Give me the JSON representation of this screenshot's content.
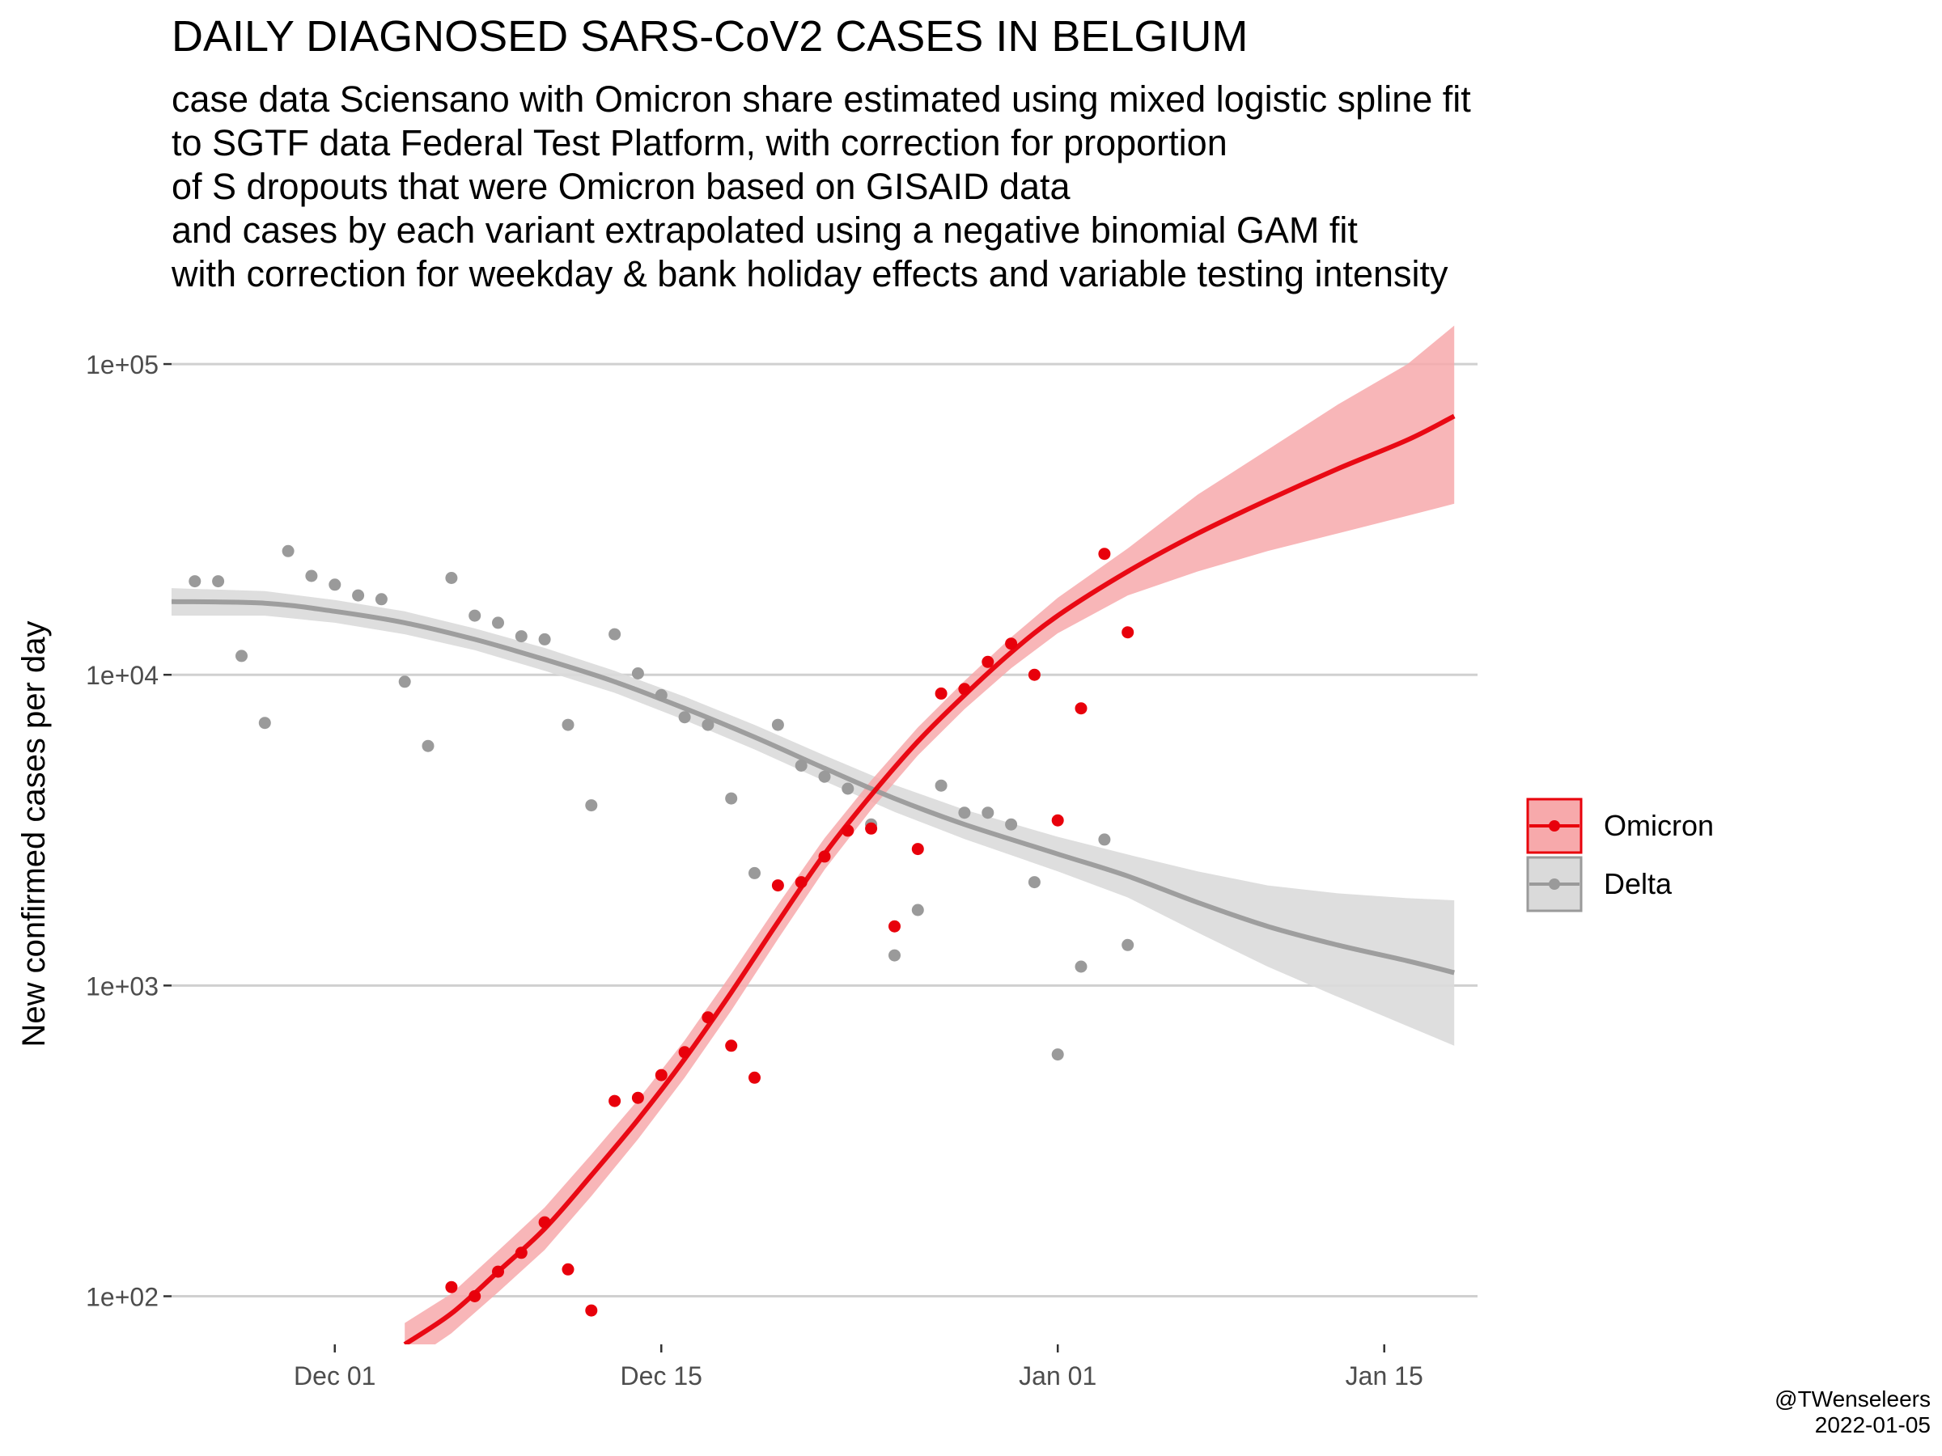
{
  "title": "DAILY DIAGNOSED SARS-CoV2 CASES IN BELGIUM",
  "subtitle_lines": [
    "case data Sciensano with Omicron share estimated using mixed logistic spline fit",
    "to SGTF data Federal Test Platform, with correction for proportion",
    "of S dropouts that were Omicron based on GISAID data",
    "and cases by each variant extrapolated using a negative binomial GAM fit",
    "with correction for weekday & bank holiday effects and variable testing intensity"
  ],
  "credit": {
    "handle": "@TWenseleers",
    "date": "2022-01-05"
  },
  "colors": {
    "omicron": "#e8000b",
    "omicron_band": "#f7a9ab",
    "delta": "#9a9a9a",
    "delta_band": "#dadada",
    "grid": "#d0d0d0"
  },
  "chart_data": {
    "type": "scatter",
    "xlabel": "",
    "ylabel": "New confirmed cases per day",
    "yscale": "log10",
    "xlim": [
      "2021-11-24",
      "2022-01-19"
    ],
    "ylim": [
      70,
      135000
    ],
    "x_ticks": [
      {
        "date": "2021-12-01",
        "label": "Dec 01"
      },
      {
        "date": "2021-12-15",
        "label": "Dec 15"
      },
      {
        "date": "2022-01-01",
        "label": "Jan 01"
      },
      {
        "date": "2022-01-15",
        "label": "Jan 15"
      }
    ],
    "y_ticks": [
      {
        "value": 100,
        "label": "1e+02"
      },
      {
        "value": 1000,
        "label": "1e+03"
      },
      {
        "value": 10000,
        "label": "1e+04"
      },
      {
        "value": 100000,
        "label": "1e+05"
      }
    ],
    "grid": true,
    "legend_position": "right",
    "series": [
      {
        "name": "Omicron",
        "color": "#e8000b",
        "points": [
          [
            "2021-12-06",
            107
          ],
          [
            "2021-12-07",
            100
          ],
          [
            "2021-12-08",
            120
          ],
          [
            "2021-12-09",
            138
          ],
          [
            "2021-12-10",
            173
          ],
          [
            "2021-12-11",
            122
          ],
          [
            "2021-12-12",
            90
          ],
          [
            "2021-12-13",
            425
          ],
          [
            "2021-12-14",
            435
          ],
          [
            "2021-12-15",
            515
          ],
          [
            "2021-12-16",
            610
          ],
          [
            "2021-12-17",
            790
          ],
          [
            "2021-12-18",
            640
          ],
          [
            "2021-12-19",
            505
          ],
          [
            "2021-12-20",
            2100
          ],
          [
            "2021-12-21",
            2150
          ],
          [
            "2021-12-22",
            2600
          ],
          [
            "2021-12-23",
            3150
          ],
          [
            "2021-12-24",
            3200
          ],
          [
            "2021-12-25",
            1550
          ],
          [
            "2021-12-26",
            2750
          ],
          [
            "2021-12-27",
            8700
          ],
          [
            "2021-12-28",
            9000
          ],
          [
            "2021-12-29",
            11000
          ],
          [
            "2021-12-30",
            12600
          ],
          [
            "2021-12-31",
            10000
          ],
          [
            "2022-01-01",
            3400
          ],
          [
            "2022-01-02",
            7800
          ],
          [
            "2022-01-03",
            24500
          ],
          [
            "2022-01-04",
            13700
          ]
        ],
        "fit": [
          [
            "2021-12-04",
            70
          ],
          [
            "2021-12-06",
            88
          ],
          [
            "2021-12-08",
            120
          ],
          [
            "2021-12-10",
            165
          ],
          [
            "2021-12-12",
            245
          ],
          [
            "2021-12-14",
            370
          ],
          [
            "2021-12-16",
            580
          ],
          [
            "2021-12-18",
            950
          ],
          [
            "2021-12-20",
            1600
          ],
          [
            "2021-12-22",
            2650
          ],
          [
            "2021-12-24",
            4100
          ],
          [
            "2021-12-26",
            6100
          ],
          [
            "2021-12-28",
            8600
          ],
          [
            "2021-12-30",
            11800
          ],
          [
            "2022-01-01",
            15500
          ],
          [
            "2022-01-04",
            21500
          ],
          [
            "2022-01-07",
            28500
          ],
          [
            "2022-01-10",
            36500
          ],
          [
            "2022-01-13",
            46000
          ],
          [
            "2022-01-16",
            57000
          ],
          [
            "2022-01-18",
            68000
          ]
        ],
        "band_lower": [
          [
            "2021-12-04",
            60
          ],
          [
            "2021-12-06",
            76
          ],
          [
            "2021-12-08",
            103
          ],
          [
            "2021-12-10",
            141
          ],
          [
            "2021-12-12",
            210
          ],
          [
            "2021-12-14",
            320
          ],
          [
            "2021-12-16",
            505
          ],
          [
            "2021-12-18",
            830
          ],
          [
            "2021-12-20",
            1410
          ],
          [
            "2021-12-22",
            2360
          ],
          [
            "2021-12-24",
            3680
          ],
          [
            "2021-12-26",
            5500
          ],
          [
            "2021-12-28",
            7750
          ],
          [
            "2021-12-30",
            10500
          ],
          [
            "2022-01-01",
            13600
          ],
          [
            "2022-01-04",
            18000
          ],
          [
            "2022-01-07",
            21500
          ],
          [
            "2022-01-10",
            25000
          ],
          [
            "2022-01-13",
            28500
          ],
          [
            "2022-01-16",
            32500
          ],
          [
            "2022-01-18",
            35500
          ]
        ],
        "band_upper": [
          [
            "2021-12-04",
            82
          ],
          [
            "2021-12-06",
            102
          ],
          [
            "2021-12-08",
            140
          ],
          [
            "2021-12-10",
            193
          ],
          [
            "2021-12-12",
            286
          ],
          [
            "2021-12-14",
            428
          ],
          [
            "2021-12-16",
            666
          ],
          [
            "2021-12-18",
            1090
          ],
          [
            "2021-12-20",
            1820
          ],
          [
            "2021-12-22",
            2980
          ],
          [
            "2021-12-24",
            4570
          ],
          [
            "2021-12-26",
            6770
          ],
          [
            "2021-12-28",
            9550
          ],
          [
            "2021-12-30",
            13200
          ],
          [
            "2022-01-01",
            17700
          ],
          [
            "2022-01-04",
            25500
          ],
          [
            "2022-01-07",
            38000
          ],
          [
            "2022-01-10",
            53000
          ],
          [
            "2022-01-13",
            74000
          ],
          [
            "2022-01-16",
            100000
          ],
          [
            "2022-01-18",
            133000
          ]
        ]
      },
      {
        "name": "Delta",
        "color": "#9a9a9a",
        "points": [
          [
            "2021-11-25",
            20000
          ],
          [
            "2021-11-26",
            20000
          ],
          [
            "2021-11-27",
            11500
          ],
          [
            "2021-11-28",
            7000
          ],
          [
            "2021-11-29",
            25000
          ],
          [
            "2021-11-30",
            20800
          ],
          [
            "2021-12-01",
            19500
          ],
          [
            "2021-12-02",
            18000
          ],
          [
            "2021-12-03",
            17500
          ],
          [
            "2021-12-04",
            9500
          ],
          [
            "2021-12-05",
            5900
          ],
          [
            "2021-12-06",
            20500
          ],
          [
            "2021-12-07",
            15500
          ],
          [
            "2021-12-08",
            14700
          ],
          [
            "2021-12-09",
            13300
          ],
          [
            "2021-12-10",
            13000
          ],
          [
            "2021-12-11",
            6900
          ],
          [
            "2021-12-12",
            3800
          ],
          [
            "2021-12-13",
            13500
          ],
          [
            "2021-12-14",
            10100
          ],
          [
            "2021-12-15",
            8600
          ],
          [
            "2021-12-16",
            7300
          ],
          [
            "2021-12-17",
            6900
          ],
          [
            "2021-12-18",
            4000
          ],
          [
            "2021-12-19",
            2300
          ],
          [
            "2021-12-20",
            6900
          ],
          [
            "2021-12-21",
            5100
          ],
          [
            "2021-12-22",
            4700
          ],
          [
            "2021-12-23",
            4300
          ],
          [
            "2021-12-24",
            3300
          ],
          [
            "2021-12-25",
            1250
          ],
          [
            "2021-12-26",
            1750
          ],
          [
            "2021-12-27",
            4400
          ],
          [
            "2021-12-28",
            3600
          ],
          [
            "2021-12-29",
            3600
          ],
          [
            "2021-12-30",
            3300
          ],
          [
            "2021-12-31",
            2150
          ],
          [
            "2022-01-01",
            600
          ],
          [
            "2022-01-02",
            1150
          ],
          [
            "2022-01-03",
            2950
          ],
          [
            "2022-01-04",
            1350
          ]
        ],
        "fit": [
          [
            "2021-11-24",
            17200
          ],
          [
            "2021-11-28",
            17000
          ],
          [
            "2021-12-01",
            16000
          ],
          [
            "2021-12-04",
            14700
          ],
          [
            "2021-12-07",
            13000
          ],
          [
            "2021-12-10",
            11200
          ],
          [
            "2021-12-13",
            9500
          ],
          [
            "2021-12-16",
            7800
          ],
          [
            "2021-12-19",
            6300
          ],
          [
            "2021-12-22",
            5000
          ],
          [
            "2021-12-25",
            4000
          ],
          [
            "2021-12-28",
            3300
          ],
          [
            "2022-01-01",
            2650
          ],
          [
            "2022-01-04",
            2250
          ],
          [
            "2022-01-07",
            1850
          ],
          [
            "2022-01-10",
            1550
          ],
          [
            "2022-01-13",
            1350
          ],
          [
            "2022-01-16",
            1200
          ],
          [
            "2022-01-18",
            1100
          ]
        ],
        "band_lower": [
          [
            "2021-11-24",
            15500
          ],
          [
            "2021-11-28",
            15500
          ],
          [
            "2021-12-01",
            14700
          ],
          [
            "2021-12-04",
            13500
          ],
          [
            "2021-12-07",
            12000
          ],
          [
            "2021-12-10",
            10300
          ],
          [
            "2021-12-13",
            8750
          ],
          [
            "2021-12-16",
            7150
          ],
          [
            "2021-12-19",
            5750
          ],
          [
            "2021-12-22",
            4550
          ],
          [
            "2021-12-25",
            3620
          ],
          [
            "2021-12-28",
            2960
          ],
          [
            "2022-01-01",
            2330
          ],
          [
            "2022-01-04",
            1920
          ],
          [
            "2022-01-07",
            1480
          ],
          [
            "2022-01-10",
            1150
          ],
          [
            "2022-01-13",
            920
          ],
          [
            "2022-01-16",
            740
          ],
          [
            "2022-01-18",
            640
          ]
        ],
        "band_upper": [
          [
            "2021-11-24",
            19000
          ],
          [
            "2021-11-28",
            18600
          ],
          [
            "2021-12-01",
            17400
          ],
          [
            "2021-12-04",
            16000
          ],
          [
            "2021-12-07",
            14100
          ],
          [
            "2021-12-10",
            12200
          ],
          [
            "2021-12-13",
            10300
          ],
          [
            "2021-12-16",
            8500
          ],
          [
            "2021-12-19",
            6900
          ],
          [
            "2021-12-22",
            5500
          ],
          [
            "2021-12-25",
            4420
          ],
          [
            "2021-12-28",
            3680
          ],
          [
            "2022-01-01",
            3010
          ],
          [
            "2022-01-04",
            2640
          ],
          [
            "2022-01-07",
            2330
          ],
          [
            "2022-01-10",
            2100
          ],
          [
            "2022-01-13",
            1980
          ],
          [
            "2022-01-16",
            1910
          ],
          [
            "2022-01-18",
            1880
          ]
        ]
      }
    ]
  }
}
